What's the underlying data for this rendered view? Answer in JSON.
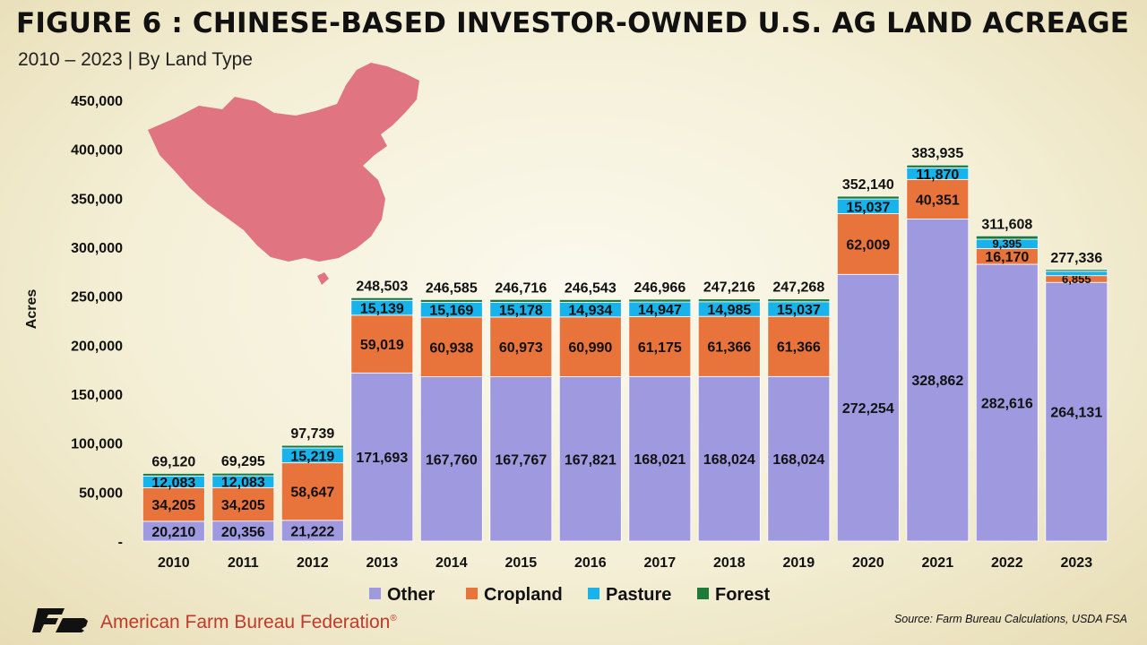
{
  "header": {
    "title": "FIGURE 6 : CHINESE-BASED INVESTOR-OWNED U.S. AG LAND ACREAGE",
    "subtitle": "2010 – 2023 | By Land Type"
  },
  "footer": {
    "organization": "American Farm Bureau Federation",
    "registered_mark": "®",
    "source": "Source: Farm Bureau Calculations, USDA FSA"
  },
  "colors": {
    "Other": "#9f9ae0",
    "Cropland": "#e8743b",
    "Pasture": "#17b3ea",
    "Forest": "#1d7a39",
    "map": "#e07480",
    "logo": "#111111"
  },
  "chart_data": {
    "type": "bar",
    "stacked": true,
    "title": "",
    "xlabel": "",
    "ylabel": "Acres",
    "ylim": [
      0,
      450000
    ],
    "yticks": [
      0,
      50000,
      100000,
      150000,
      200000,
      250000,
      300000,
      350000,
      400000,
      450000
    ],
    "ytick_labels": [
      "-",
      "50,000",
      "100,000",
      "150,000",
      "200,000",
      "250,000",
      "300,000",
      "350,000",
      "400,000",
      "450,000"
    ],
    "grid": false,
    "legend_position": "bottom",
    "categories": [
      "2010",
      "2011",
      "2012",
      "2013",
      "2014",
      "2015",
      "2016",
      "2017",
      "2018",
      "2019",
      "2020",
      "2021",
      "2022",
      "2023"
    ],
    "series": [
      {
        "name": "Other",
        "values": [
          20210,
          20356,
          21222,
          171693,
          167760,
          167767,
          167821,
          168021,
          168024,
          168024,
          272254,
          328862,
          282616,
          264131
        ]
      },
      {
        "name": "Cropland",
        "values": [
          34205,
          34205,
          58647,
          59019,
          60938,
          60973,
          60990,
          61175,
          61366,
          61366,
          62009,
          40351,
          16170,
          6855
        ]
      },
      {
        "name": "Pasture",
        "values": [
          12083,
          12083,
          15219,
          15139,
          15169,
          15178,
          14934,
          14947,
          14985,
          15037,
          15037,
          11870,
          9395,
          4500
        ]
      },
      {
        "name": "Forest",
        "values": [
          2622,
          2651,
          2651,
          2652,
          2718,
          2798,
          2798,
          2823,
          2841,
          2841,
          2840,
          2852,
          3427,
          1850
        ]
      }
    ],
    "totals": [
      69120,
      69295,
      97739,
      248503,
      246585,
      246716,
      246543,
      246966,
      247216,
      247268,
      352140,
      383935,
      311608,
      277336
    ],
    "labels": {
      "Other": [
        "20,210",
        "20,356",
        "21,222",
        "171,693",
        "167,760",
        "167,767",
        "167,821",
        "168,021",
        "168,024",
        "168,024",
        "272,254",
        "328,862",
        "282,616",
        "264,131"
      ],
      "Cropland": [
        "34,205",
        "34,205",
        "58,647",
        "59,019",
        "60,938",
        "60,973",
        "60,990",
        "61,175",
        "61,366",
        "61,366",
        "62,009",
        "40,351",
        "16,170",
        "6,855"
      ],
      "Pasture": [
        "12,083",
        "12,083",
        "15,219",
        "15,139",
        "15,169",
        "15,178",
        "14,934",
        "14,947",
        "14,985",
        "15,037",
        "15,037",
        "11,870",
        "9,395",
        ""
      ],
      "Forest": [
        "",
        "",
        "",
        "",
        "",
        "",
        "",
        "",
        "",
        "",
        "",
        "",
        "",
        ""
      ]
    },
    "total_labels": [
      "69,120",
      "69,295",
      "97,739",
      "248,503",
      "246,585",
      "246,716",
      "246,543",
      "246,966",
      "247,216",
      "247,268",
      "352,140",
      "383,935",
      "311,608",
      "277,336"
    ]
  }
}
